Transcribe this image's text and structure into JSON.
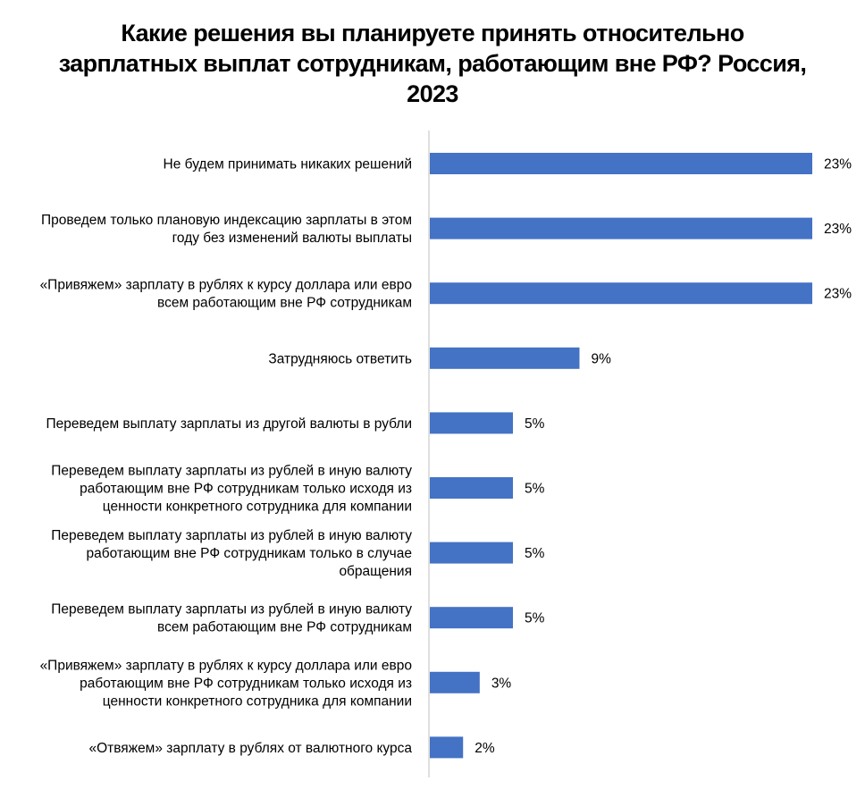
{
  "chart_data": {
    "type": "bar",
    "orientation": "horizontal",
    "title": "Какие решения вы планируете принять относительно\nзарплатных выплат сотрудникам, работающим вне РФ? Россия,\n2023",
    "categories": [
      "Не будем принимать никаких решений",
      "Проведем только плановую индексацию зарплаты в этом\nгоду без изменений валюты выплаты",
      "«Привяжем» зарплату в рублях к курсу доллара или евро\nвсем работающим вне РФ сотрудникам",
      "Затрудняюсь ответить",
      "Переведем выплату зарплаты из другой валюты в рубли",
      "Переведем выплату зарплаты из рублей в иную валюту\nработающим вне РФ сотрудникам только исходя из\nценности конкретного сотрудника для компании",
      "Переведем выплату зарплаты из рублей в иную валюту\nработающим вне РФ сотрудникам только в случае\nобращения",
      "Переведем выплату зарплаты из рублей в иную валюту\nвсем работающим вне РФ сотрудникам",
      "«Привяжем» зарплату в рублях к курсу доллара или евро\nработающим вне РФ сотрудникам только исходя из\nценности конкретного сотрудника для компании",
      "«Отвяжем» зарплату в рублях от валютного курса"
    ],
    "values": [
      23,
      23,
      23,
      9,
      5,
      5,
      5,
      5,
      3,
      2
    ],
    "value_labels": [
      "23%",
      "23%",
      "23%",
      "9%",
      "5%",
      "5%",
      "5%",
      "5%",
      "3%",
      "2%"
    ],
    "xlim": [
      0,
      23
    ],
    "bar_color": "#4472C4",
    "axis_color": "#BFBFBF",
    "grid": false,
    "legend": "none"
  }
}
